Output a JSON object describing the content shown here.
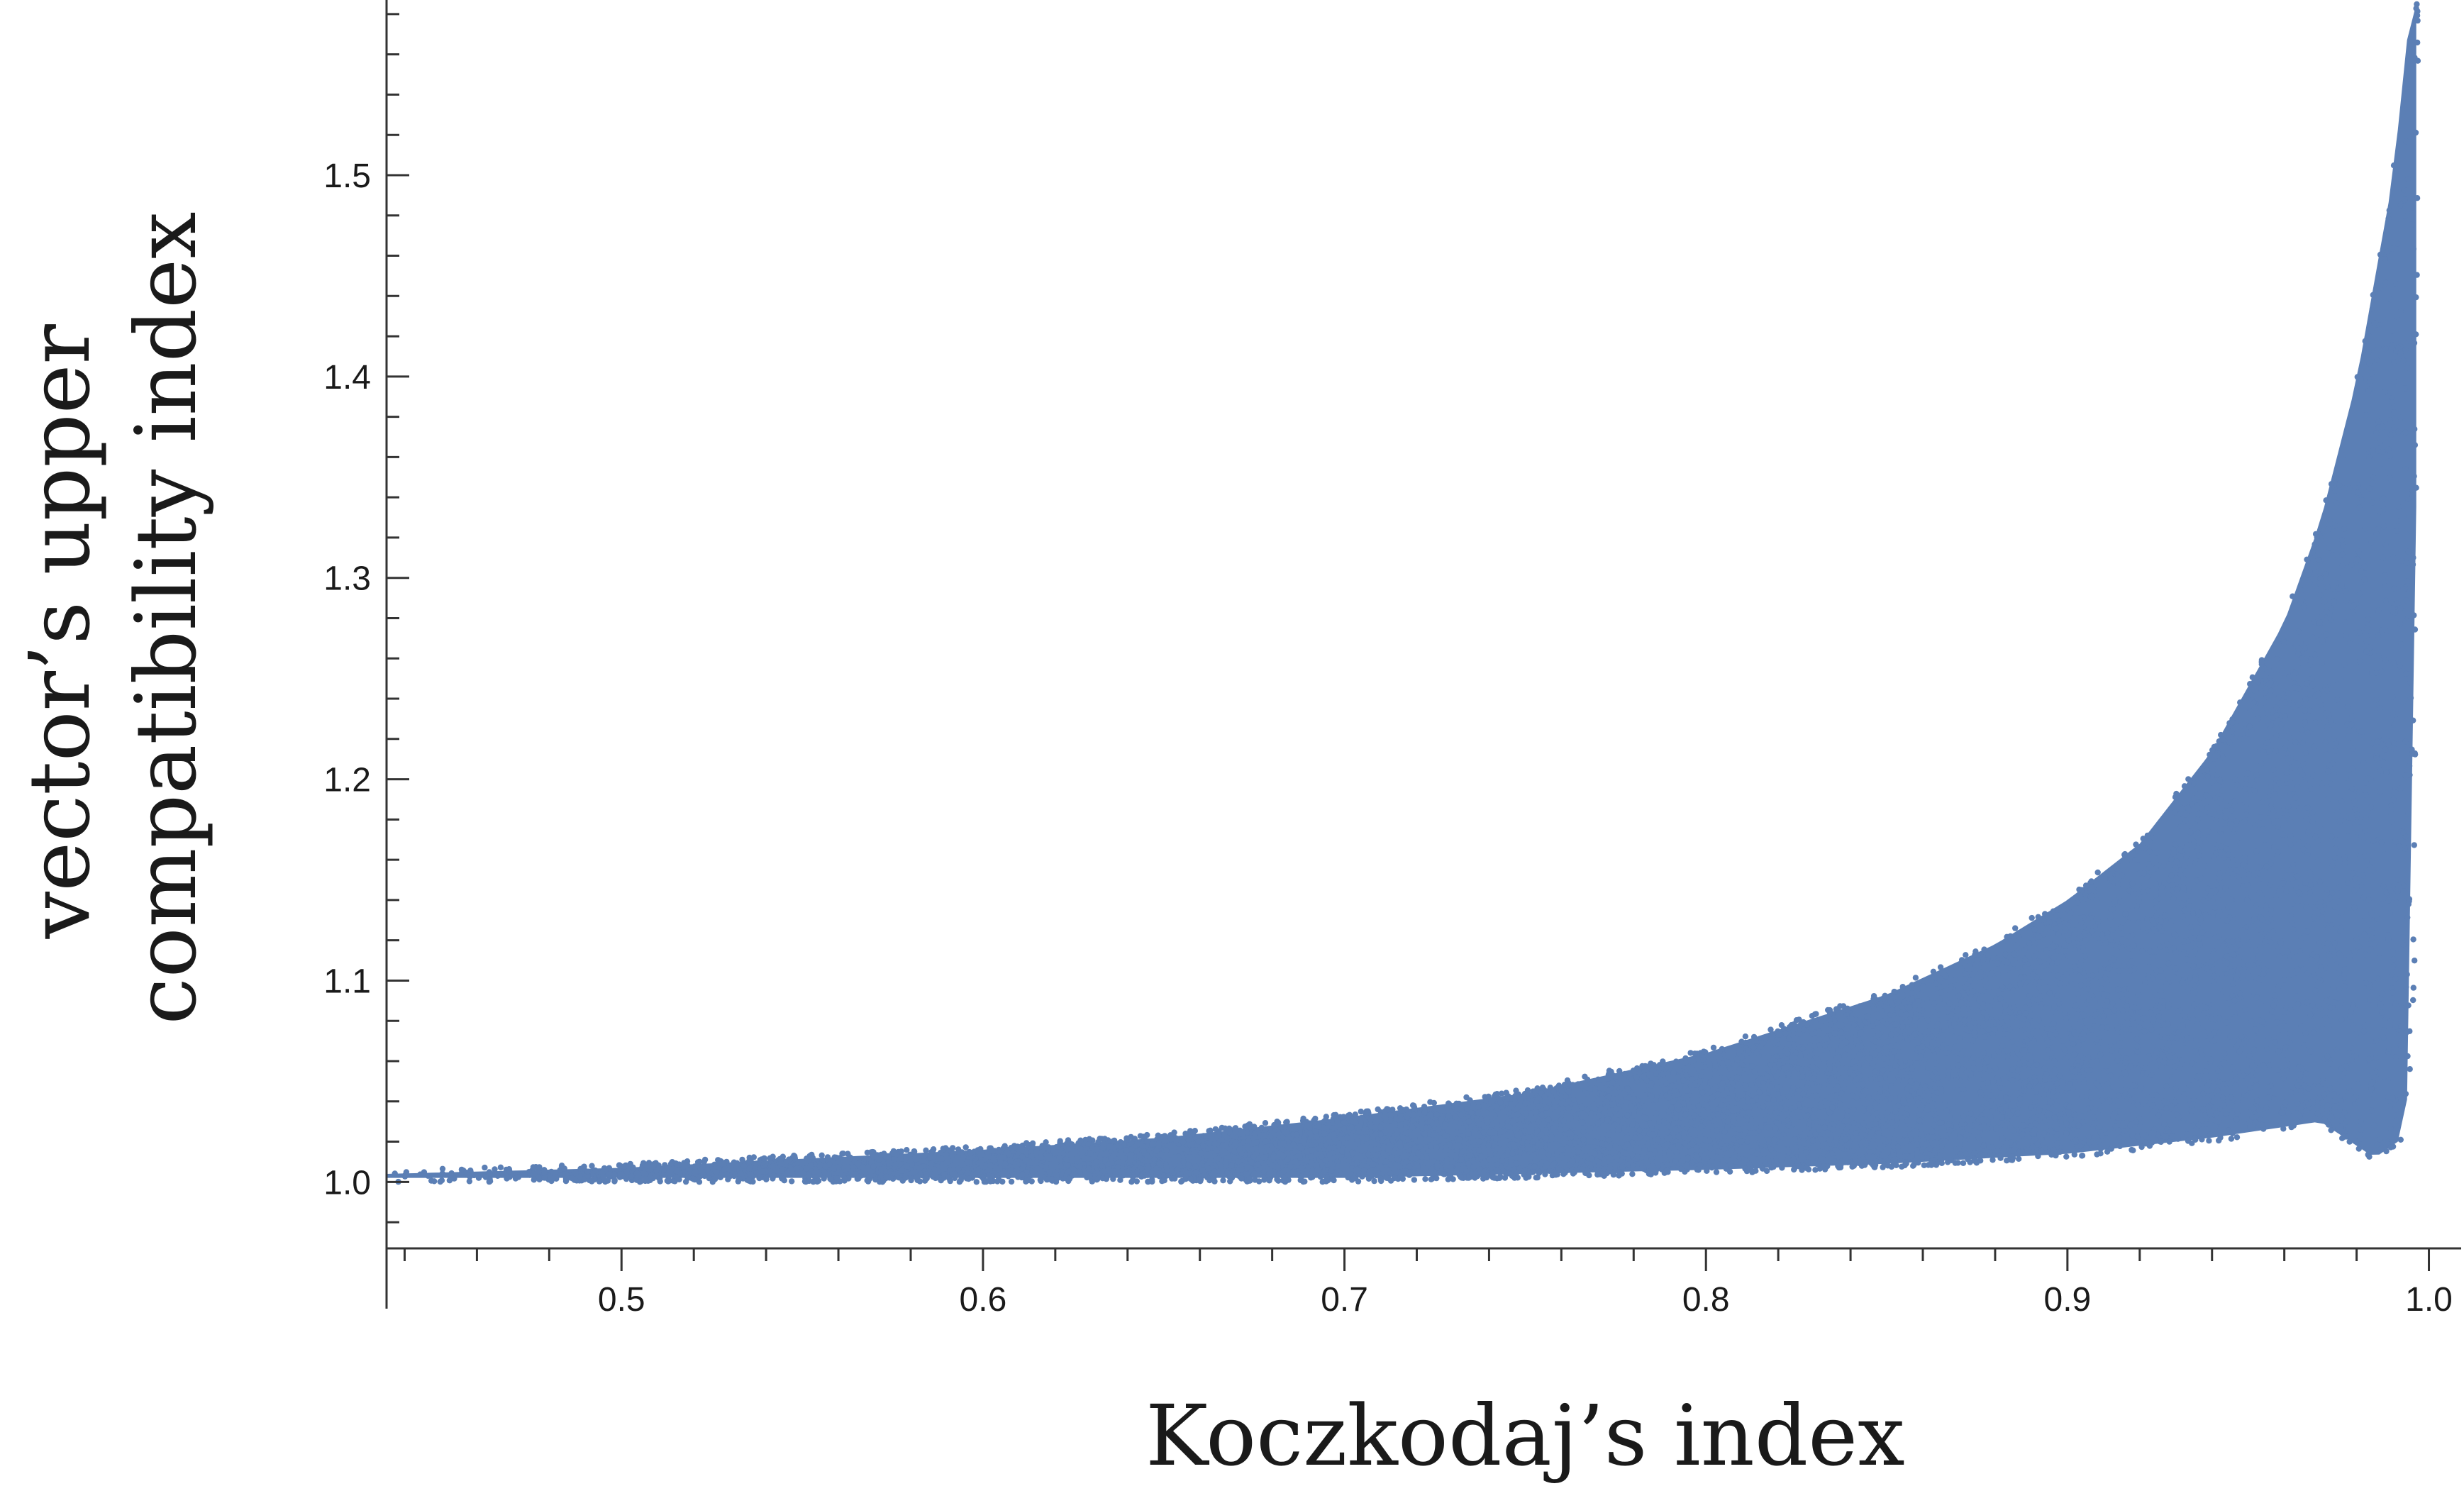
{
  "chart_data": {
    "type": "scatter",
    "title": "",
    "xlabel": "Koczkodaj’s index",
    "ylabel_lines": [
      "vector’s upper",
      "compatibility index"
    ],
    "xlim": [
      0.435,
      1.005
    ],
    "ylim": [
      0.967,
      1.587
    ],
    "x_ticks": [
      0.5,
      0.6,
      0.7,
      0.8,
      0.9,
      1.0
    ],
    "x_tick_labels": [
      "0.5",
      "0.6",
      "0.7",
      "0.8",
      "0.9",
      "1.0"
    ],
    "x_minor_step": 0.02,
    "y_ticks": [
      1.0,
      1.1,
      1.2,
      1.3,
      1.4,
      1.5
    ],
    "y_tick_labels": [
      "1.0",
      "1.1",
      "1.2",
      "1.3",
      "1.4",
      "1.5"
    ],
    "y_minor_step": 0.02,
    "grid": false,
    "legend": "none",
    "marker_color": "#5b7fb5",
    "envelope": {
      "upper": [
        [
          0.435,
          1.006
        ],
        [
          0.5,
          1.009
        ],
        [
          0.6,
          1.018
        ],
        [
          0.65,
          1.024
        ],
        [
          0.7,
          1.034
        ],
        [
          0.75,
          1.046
        ],
        [
          0.8,
          1.066
        ],
        [
          0.85,
          1.095
        ],
        [
          0.88,
          1.12
        ],
        [
          0.9,
          1.142
        ],
        [
          0.92,
          1.17
        ],
        [
          0.94,
          1.216
        ],
        [
          0.96,
          1.28
        ],
        [
          0.97,
          1.33
        ],
        [
          0.98,
          1.4
        ],
        [
          0.99,
          1.5
        ],
        [
          0.994,
          1.57
        ],
        [
          0.996,
          1.587
        ]
      ],
      "lower": [
        [
          0.435,
          1.0
        ],
        [
          0.5,
          1.0
        ],
        [
          0.6,
          1.0
        ],
        [
          0.7,
          1.0
        ],
        [
          0.75,
          1.002
        ],
        [
          0.8,
          1.004
        ],
        [
          0.85,
          1.007
        ],
        [
          0.9,
          1.012
        ],
        [
          0.94,
          1.02
        ],
        [
          0.97,
          1.028
        ],
        [
          0.985,
          1.01
        ],
        [
          0.993,
          1.02
        ],
        [
          0.996,
          1.08
        ],
        [
          0.997,
          1.587
        ]
      ]
    }
  }
}
